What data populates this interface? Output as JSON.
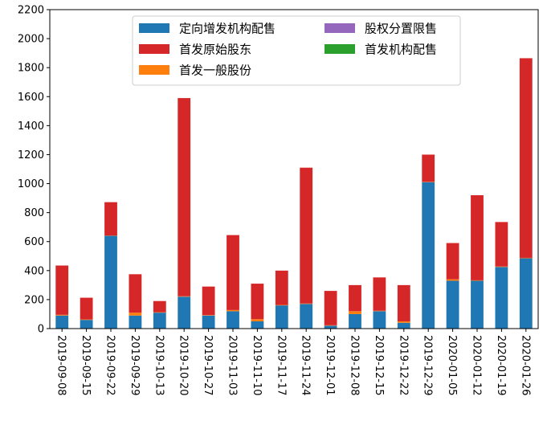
{
  "chart_data": {
    "type": "bar",
    "stacked": true,
    "grid": false,
    "legend_position": "top-center",
    "ylim": [
      0,
      2200
    ],
    "yticks": [
      0,
      200,
      400,
      600,
      800,
      1000,
      1200,
      1400,
      1600,
      1800,
      2000,
      2200
    ],
    "categories": [
      "2019-09-08",
      "2019-09-15",
      "2019-09-22",
      "2019-09-29",
      "2019-10-13",
      "2019-10-20",
      "2019-10-27",
      "2019-11-03",
      "2019-11-10",
      "2019-11-17",
      "2019-11-24",
      "2019-12-01",
      "2019-12-08",
      "2019-12-15",
      "2019-12-22",
      "2019-12-29",
      "2020-01-05",
      "2020-01-12",
      "2020-01-19",
      "2020-01-26"
    ],
    "series": [
      {
        "name": "定向增发机构配售",
        "color": "#1f77b4",
        "values": [
          90,
          60,
          640,
          90,
          110,
          220,
          90,
          120,
          50,
          160,
          170,
          20,
          100,
          120,
          40,
          1010,
          330,
          330,
          425,
          485
        ]
      },
      {
        "name": "首发一般股份",
        "color": "#ff7f0e",
        "values": [
          5,
          3,
          2,
          20,
          3,
          3,
          3,
          8,
          15,
          3,
          3,
          3,
          20,
          3,
          10,
          2,
          10,
          3,
          3,
          3
        ]
      },
      {
        "name": "首发机构配售",
        "color": "#2ca02c",
        "values": [
          0,
          0,
          0,
          0,
          0,
          0,
          0,
          0,
          0,
          0,
          0,
          0,
          0,
          0,
          0,
          0,
          0,
          0,
          0,
          0
        ]
      },
      {
        "name": "首发原始股东",
        "color": "#d62728",
        "values": [
          340,
          150,
          230,
          265,
          77,
          1367,
          197,
          517,
          245,
          237,
          937,
          237,
          180,
          230,
          250,
          188,
          250,
          587,
          307,
          1377
        ]
      },
      {
        "name": "股权分置限售",
        "color": "#9467bd",
        "values": [
          0,
          0,
          0,
          0,
          0,
          0,
          0,
          0,
          0,
          0,
          0,
          0,
          0,
          0,
          0,
          0,
          0,
          0,
          0,
          0
        ]
      }
    ],
    "legend_order": [
      0,
      3,
      1,
      4,
      2
    ]
  }
}
